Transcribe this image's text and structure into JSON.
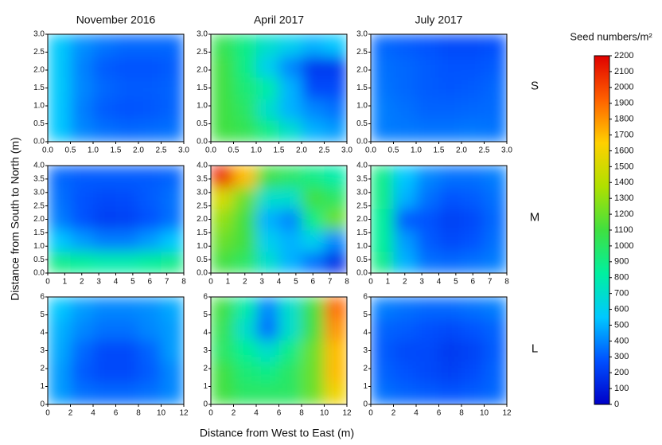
{
  "chart_data": {
    "type": "contour",
    "xlabel": "Distance from West to East (m)",
    "ylabel": "Distance from South to North (m)",
    "columns": [
      "November 2016",
      "April 2017",
      "July 2017"
    ],
    "colorbar": {
      "title": "Seed numbers/m²",
      "lim": [
        0,
        2200
      ],
      "ticks": [
        0,
        100,
        200,
        300,
        400,
        500,
        600,
        700,
        800,
        900,
        1000,
        1100,
        1200,
        1300,
        1400,
        1500,
        1600,
        1700,
        1800,
        1900,
        2000,
        2100,
        2200
      ],
      "colors": [
        "#0000c8",
        "#0050ff",
        "#00c8ff",
        "#00f0a0",
        "#40e040",
        "#b0e000",
        "#ffd000",
        "#ff6000",
        "#e00000"
      ]
    },
    "rows": [
      {
        "label": "S",
        "xlim": [
          0,
          3
        ],
        "xticks": [
          {
            "value": 0,
            "label": "0.0"
          },
          {
            "value": 0.5,
            "label": "0.5"
          },
          {
            "value": 1,
            "label": "1.0"
          },
          {
            "value": 1.5,
            "label": "1.5"
          },
          {
            "value": 2,
            "label": "2.0"
          },
          {
            "value": 2.5,
            "label": "2.5"
          },
          {
            "value": 3,
            "label": "3.0"
          }
        ],
        "ylim": [
          0,
          3
        ],
        "yticks": [
          {
            "value": 0,
            "label": "0.0"
          },
          {
            "value": 0.5,
            "label": "0.5"
          },
          {
            "value": 1,
            "label": "1.0"
          },
          {
            "value": 1.5,
            "label": "1.5"
          },
          {
            "value": 2,
            "label": "2.0"
          },
          {
            "value": 2.5,
            "label": "2.5"
          },
          {
            "value": 3,
            "label": "3.0"
          }
        ],
        "panels": [
          [
            [
              550,
              400,
              350,
              330,
              340,
              350
            ],
            [
              550,
              380,
              300,
              280,
              290,
              320
            ],
            [
              560,
              400,
              330,
              300,
              300,
              320
            ],
            [
              560,
              390,
              300,
              280,
              280,
              300
            ],
            [
              560,
              420,
              360,
              330,
              330,
              330
            ]
          ],
          [
            [
              1100,
              1050,
              900,
              700,
              500,
              450
            ],
            [
              1100,
              1000,
              700,
              500,
              400,
              350
            ],
            [
              1100,
              950,
              800,
              500,
              250,
              250
            ],
            [
              1100,
              900,
              600,
              400,
              200,
              200
            ],
            [
              1050,
              900,
              700,
              600,
              500,
              550
            ]
          ],
          [
            [
              380,
              370,
              360,
              360,
              370,
              360
            ],
            [
              380,
              350,
              320,
              320,
              330,
              340
            ],
            [
              360,
              330,
              300,
              290,
              300,
              330
            ],
            [
              350,
              330,
              300,
              280,
              280,
              300
            ],
            [
              330,
              300,
              280,
              250,
              250,
              270
            ]
          ]
        ]
      },
      {
        "label": "M",
        "xlim": [
          0,
          8
        ],
        "xticks": [
          0,
          1,
          2,
          3,
          4,
          5,
          6,
          7,
          8
        ],
        "ylim": [
          0,
          4
        ],
        "yticks": [
          {
            "value": 0,
            "label": "0.0"
          },
          {
            "value": 0.5,
            "label": "0.5"
          },
          {
            "value": 1,
            "label": "1.0"
          },
          {
            "value": 1.5,
            "label": "1.5"
          },
          {
            "value": 2,
            "label": "2.0"
          },
          {
            "value": 2.5,
            "label": "2.5"
          },
          {
            "value": 3,
            "label": "3.0"
          },
          {
            "value": 3.5,
            "label": "3.5"
          },
          {
            "value": 4,
            "label": "4.0"
          }
        ],
        "panels": [
          [
            [
              900,
              850,
              800,
              800,
              850,
              900
            ],
            [
              550,
              450,
              380,
              380,
              450,
              550
            ],
            [
              380,
              280,
              220,
              230,
              280,
              350
            ],
            [
              350,
              280,
              250,
              260,
              300,
              350
            ],
            [
              330,
              300,
              300,
              300,
              300,
              320
            ]
          ],
          [
            [
              1100,
              1000,
              700,
              500,
              350,
              150
            ],
            [
              1200,
              1100,
              600,
              500,
              600,
              400
            ],
            [
              1300,
              1100,
              500,
              400,
              900,
              1200
            ],
            [
              1500,
              1200,
              700,
              700,
              1100,
              1000
            ],
            [
              2100,
              1700,
              1100,
              1000,
              900,
              800
            ]
          ],
          [
            [
              900,
              500,
              350,
              330,
              350,
              380
            ],
            [
              850,
              450,
              300,
              250,
              280,
              350
            ],
            [
              850,
              300,
              280,
              220,
              250,
              330
            ],
            [
              900,
              500,
              350,
              280,
              300,
              350
            ],
            [
              900,
              550,
              400,
              350,
              350,
              380
            ]
          ]
        ]
      },
      {
        "label": "L",
        "xlim": [
          0,
          12
        ],
        "xticks": [
          0,
          2,
          4,
          6,
          8,
          10,
          12
        ],
        "ylim": [
          0,
          6
        ],
        "yticks": [
          0,
          1,
          2,
          3,
          4,
          5,
          6
        ],
        "panels": [
          [
            [
              450,
              350,
              330,
              330,
              350,
              400
            ],
            [
              450,
              300,
              250,
              250,
              300,
              400
            ],
            [
              480,
              330,
              250,
              250,
              320,
              450
            ],
            [
              500,
              400,
              350,
              350,
              400,
              450
            ],
            [
              550,
              450,
              400,
              400,
              420,
              480
            ]
          ],
          [
            [
              1100,
              1000,
              1000,
              1000,
              1200,
              1600
            ],
            [
              1100,
              950,
              900,
              1000,
              1200,
              1700
            ],
            [
              1000,
              850,
              700,
              900,
              1200,
              1700
            ],
            [
              1050,
              700,
              350,
              700,
              1100,
              1800
            ],
            [
              1100,
              800,
              400,
              700,
              1100,
              1900
            ]
          ],
          [
            [
              350,
              320,
              300,
              280,
              300,
              330
            ],
            [
              320,
              280,
              250,
              220,
              260,
              320
            ],
            [
              300,
              250,
              250,
              200,
              230,
              300
            ],
            [
              320,
              300,
              270,
              250,
              280,
              320
            ],
            [
              380,
              350,
              330,
              330,
              350,
              380
            ]
          ]
        ]
      }
    ]
  }
}
